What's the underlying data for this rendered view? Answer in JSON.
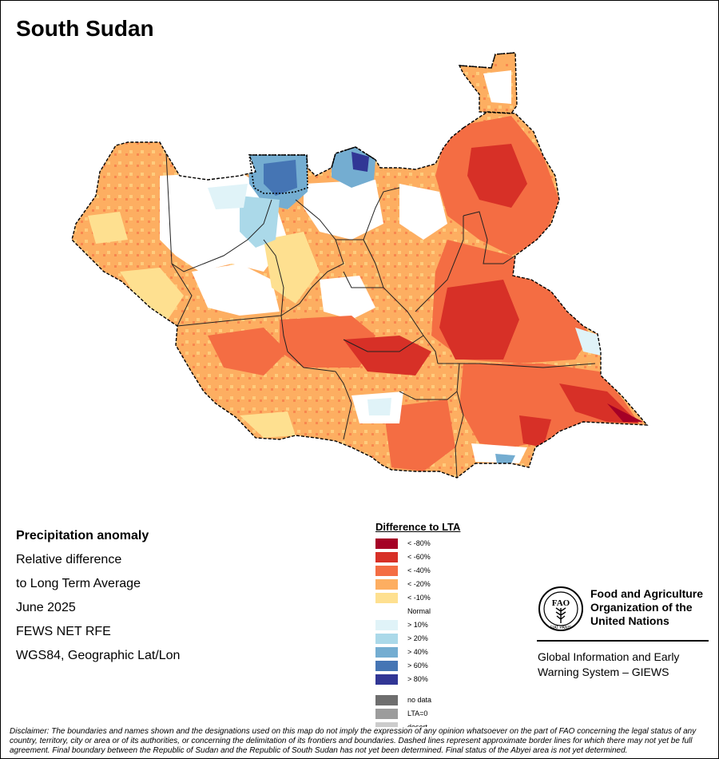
{
  "title": "South Sudan",
  "info": {
    "heading": "Precipitation anomaly",
    "lines": [
      "Relative difference",
      "to Long Term Average",
      "June 2025",
      "FEWS NET RFE",
      "WGS84, Geographic Lat/Lon"
    ]
  },
  "legend": {
    "title": "Difference to LTA",
    "items": [
      {
        "label": "< -80%",
        "color": "#a50026"
      },
      {
        "label": "< -60%",
        "color": "#d73027"
      },
      {
        "label": "< -40%",
        "color": "#f46d43"
      },
      {
        "label": "< -20%",
        "color": "#fdae61"
      },
      {
        "label": "< -10%",
        "color": "#fee090"
      },
      {
        "label": "Normal",
        "color": "#ffffff"
      },
      {
        "label": "> 10%",
        "color": "#e0f3f8"
      },
      {
        "label": "> 20%",
        "color": "#abd9e9"
      },
      {
        "label": "> 40%",
        "color": "#74add1"
      },
      {
        "label": "> 60%",
        "color": "#4575b4"
      },
      {
        "label": "> 80%",
        "color": "#313695"
      }
    ],
    "extra": [
      {
        "label": "no data",
        "color": "#6e6e6e"
      },
      {
        "label": "LTA=0",
        "color": "#9c9c9c"
      },
      {
        "label": "desert",
        "color": "#cccccc"
      }
    ]
  },
  "org": {
    "logo_text": "FAO",
    "logo_motto": "FIAT PANIS",
    "name_lines": [
      "Food and Agriculture",
      "Organization of the",
      "United Nations"
    ],
    "system_lines": [
      "Global Information and Early",
      "Warning System – GIEWS"
    ]
  },
  "disclaimer": "Disclaimer: The boundaries and names shown and the designations used on this map do not imply the expression of any opinion whatsoever on the part of FAO concerning the legal status of any country, territory, city or area or of its authorities, or concerning the delimitation of its frontiers and boundaries. Dashed lines represent approximate border lines for which there may not yet be full agreement. Final boundary between the Republic of Sudan and the Republic of South Sudan has not yet been determined. Final status of the Abyei area is not yet determined."
}
